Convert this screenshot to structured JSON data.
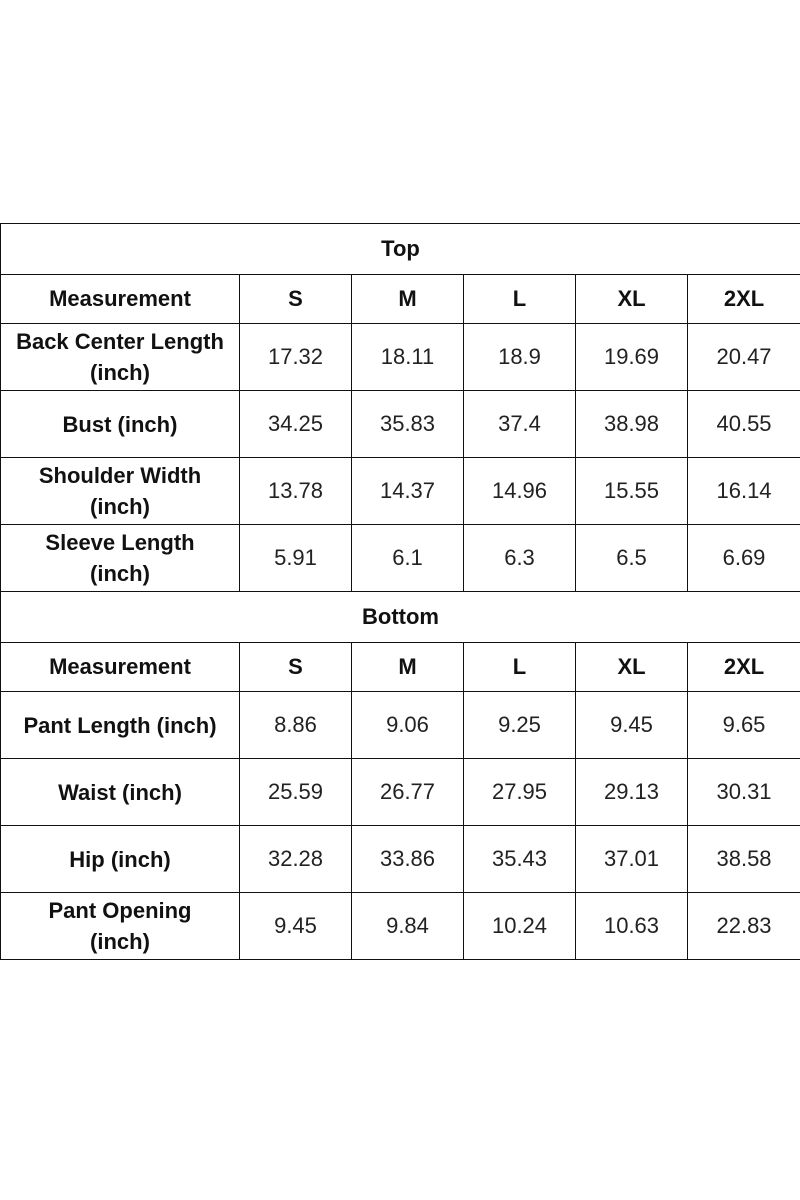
{
  "sections": [
    {
      "title": "Top",
      "header": [
        "Measurement",
        "S",
        "M",
        "L",
        "XL",
        "2XL"
      ],
      "rows": [
        {
          "label": [
            "Back Center Length",
            "(inch)"
          ],
          "values": [
            "17.32",
            "18.11",
            "18.9",
            "19.69",
            "20.47"
          ]
        },
        {
          "label": [
            "Bust (inch)"
          ],
          "values": [
            "34.25",
            "35.83",
            "37.4",
            "38.98",
            "40.55"
          ]
        },
        {
          "label": [
            "Shoulder Width",
            "(inch)"
          ],
          "values": [
            "13.78",
            "14.37",
            "14.96",
            "15.55",
            "16.14"
          ]
        },
        {
          "label": [
            "Sleeve Length",
            "(inch)"
          ],
          "values": [
            "5.91",
            "6.1",
            "6.3",
            "6.5",
            "6.69"
          ]
        }
      ]
    },
    {
      "title": "Bottom",
      "header": [
        "Measurement",
        "S",
        "M",
        "L",
        "XL",
        "2XL"
      ],
      "rows": [
        {
          "label": [
            "Pant Length (inch)"
          ],
          "values": [
            "8.86",
            "9.06",
            "9.25",
            "9.45",
            "9.65"
          ]
        },
        {
          "label": [
            "Waist (inch)"
          ],
          "values": [
            "25.59",
            "26.77",
            "27.95",
            "29.13",
            "30.31"
          ]
        },
        {
          "label": [
            "Hip (inch)"
          ],
          "values": [
            "32.28",
            "33.86",
            "35.43",
            "37.01",
            "38.58"
          ]
        },
        {
          "label": [
            "Pant Opening",
            "(inch)"
          ],
          "values": [
            "9.45",
            "9.84",
            "10.24",
            "10.63",
            "22.83"
          ]
        }
      ]
    }
  ]
}
